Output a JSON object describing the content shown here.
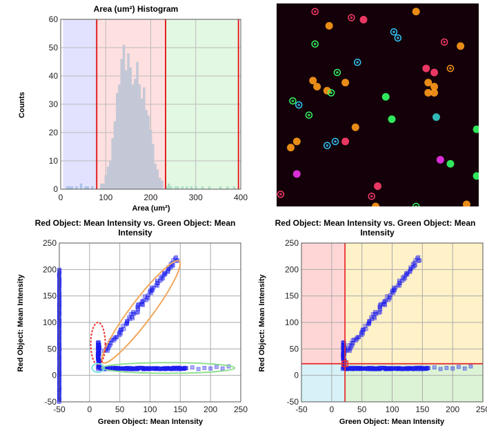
{
  "chart_data": [
    {
      "type": "bar",
      "title": "Area (um²) Histogram",
      "xlabel": "Area (um²)",
      "ylabel": "Counts",
      "xlim": [
        0,
        400
      ],
      "ylim": [
        0,
        60
      ],
      "xticks": [
        0,
        100,
        200,
        300,
        400
      ],
      "yticks": [
        0,
        10,
        20,
        30,
        40,
        50,
        60
      ],
      "grid": true,
      "gates": [
        {
          "range": [
            5,
            80
          ],
          "color": "#d8d8ff"
        },
        {
          "range": [
            80,
            233
          ],
          "color": "#ffd6d6"
        },
        {
          "range": [
            233,
            395
          ],
          "color": "#d8f5d8"
        }
      ],
      "bin_width": 5,
      "bins": [
        {
          "x": 15,
          "count": 1
        },
        {
          "x": 20,
          "count": 1
        },
        {
          "x": 25,
          "count": 1
        },
        {
          "x": 35,
          "count": 1
        },
        {
          "x": 45,
          "count": 2
        },
        {
          "x": 55,
          "count": 1
        },
        {
          "x": 60,
          "count": 1
        },
        {
          "x": 70,
          "count": 1
        },
        {
          "x": 90,
          "count": 2
        },
        {
          "x": 95,
          "count": 2
        },
        {
          "x": 100,
          "count": 5
        },
        {
          "x": 105,
          "count": 8
        },
        {
          "x": 110,
          "count": 10
        },
        {
          "x": 115,
          "count": 18
        },
        {
          "x": 120,
          "count": 24
        },
        {
          "x": 125,
          "count": 34
        },
        {
          "x": 130,
          "count": 37
        },
        {
          "x": 135,
          "count": 46
        },
        {
          "x": 140,
          "count": 51
        },
        {
          "x": 145,
          "count": 42
        },
        {
          "x": 150,
          "count": 48
        },
        {
          "x": 155,
          "count": 43
        },
        {
          "x": 160,
          "count": 37
        },
        {
          "x": 165,
          "count": 39
        },
        {
          "x": 170,
          "count": 45
        },
        {
          "x": 175,
          "count": 37
        },
        {
          "x": 180,
          "count": 32
        },
        {
          "x": 185,
          "count": 36
        },
        {
          "x": 190,
          "count": 28
        },
        {
          "x": 195,
          "count": 26
        },
        {
          "x": 200,
          "count": 21
        },
        {
          "x": 205,
          "count": 16
        },
        {
          "x": 210,
          "count": 9
        },
        {
          "x": 215,
          "count": 7
        },
        {
          "x": 220,
          "count": 4
        },
        {
          "x": 225,
          "count": 3
        },
        {
          "x": 235,
          "count": 1
        },
        {
          "x": 240,
          "count": 2
        },
        {
          "x": 245,
          "count": 1
        },
        {
          "x": 255,
          "count": 1
        },
        {
          "x": 260,
          "count": 1
        },
        {
          "x": 270,
          "count": 1
        },
        {
          "x": 280,
          "count": 1
        },
        {
          "x": 290,
          "count": 1
        },
        {
          "x": 300,
          "count": 1
        },
        {
          "x": 315,
          "count": 1
        },
        {
          "x": 330,
          "count": 1
        },
        {
          "x": 355,
          "count": 1
        },
        {
          "x": 370,
          "count": 1
        },
        {
          "x": 385,
          "count": 1
        }
      ]
    },
    {
      "type": "image",
      "title": "",
      "background": "#140008",
      "cells": [
        {
          "x": 0.19,
          "y": 0.04,
          "color": "#ff3d6e",
          "ring": true
        },
        {
          "x": 0.37,
          "y": 0.07,
          "color": "#ff3d6e",
          "ring": true
        },
        {
          "x": 0.43,
          "y": 0.08,
          "color": "#ff3d6e",
          "ring": false
        },
        {
          "x": 0.69,
          "y": 0.04,
          "color": "#ff9a1a",
          "ring": false
        },
        {
          "x": 0.26,
          "y": 0.11,
          "color": "#ff9a1a",
          "ring": false
        },
        {
          "x": 0.58,
          "y": 0.14,
          "color": "#33ccff",
          "ring": true
        },
        {
          "x": 0.6,
          "y": 0.17,
          "color": "#33ccff",
          "ring": true
        },
        {
          "x": 0.83,
          "y": 0.19,
          "color": "#ff3d6e",
          "ring": true
        },
        {
          "x": 0.91,
          "y": 0.21,
          "color": "#ff9a1a",
          "ring": false
        },
        {
          "x": 0.19,
          "y": 0.2,
          "color": "#33ff66",
          "ring": true
        },
        {
          "x": 0.4,
          "y": 0.29,
          "color": "#33ccff",
          "ring": true
        },
        {
          "x": 0.86,
          "y": 0.32,
          "color": "#ff9a1a",
          "ring": true
        },
        {
          "x": 0.74,
          "y": 0.32,
          "color": "#ff3d6e",
          "ring": false
        },
        {
          "x": 0.78,
          "y": 0.34,
          "color": "#ff3d6e",
          "ring": false
        },
        {
          "x": 0.3,
          "y": 0.34,
          "color": "#33ff66",
          "ring": true
        },
        {
          "x": 0.18,
          "y": 0.38,
          "color": "#ff9a1a",
          "ring": false
        },
        {
          "x": 0.2,
          "y": 0.41,
          "color": "#ff9a1a",
          "ring": false
        },
        {
          "x": 0.25,
          "y": 0.43,
          "color": "#ff9a1a",
          "ring": false
        },
        {
          "x": 0.27,
          "y": 0.44,
          "color": "#33ff66",
          "ring": true
        },
        {
          "x": 0.34,
          "y": 0.39,
          "color": "#ff9a1a",
          "ring": false
        },
        {
          "x": 0.75,
          "y": 0.39,
          "color": "#ff9a1a",
          "ring": false
        },
        {
          "x": 0.78,
          "y": 0.41,
          "color": "#ff9a1a",
          "ring": false
        },
        {
          "x": 0.75,
          "y": 0.44,
          "color": "#ff9a1a",
          "ring": false
        },
        {
          "x": 0.78,
          "y": 0.44,
          "color": "#ff9a1a",
          "ring": false
        },
        {
          "x": 0.08,
          "y": 0.48,
          "color": "#33ff66",
          "ring": true
        },
        {
          "x": 0.11,
          "y": 0.5,
          "color": "#33ccff",
          "ring": true
        },
        {
          "x": 0.16,
          "y": 0.55,
          "color": "#33ff66",
          "ring": true
        },
        {
          "x": 0.54,
          "y": 0.46,
          "color": "#33ff66",
          "ring": false
        },
        {
          "x": 0.57,
          "y": 0.57,
          "color": "#33ff66",
          "ring": false
        },
        {
          "x": 0.39,
          "y": 0.61,
          "color": "#ff9a1a",
          "ring": false
        },
        {
          "x": 0.79,
          "y": 0.56,
          "color": "#33cccc",
          "ring": false
        },
        {
          "x": 0.1,
          "y": 0.68,
          "color": "#ff9a1a",
          "ring": false
        },
        {
          "x": 0.07,
          "y": 0.71,
          "color": "#ff9a1a",
          "ring": false
        },
        {
          "x": 0.25,
          "y": 0.7,
          "color": "#33ccff",
          "ring": true
        },
        {
          "x": 0.29,
          "y": 0.68,
          "color": "#33ccff",
          "ring": true
        },
        {
          "x": 0.34,
          "y": 0.68,
          "color": "#ff3d6e",
          "ring": false
        },
        {
          "x": 0.99,
          "y": 0.62,
          "color": "#33ff66",
          "ring": false
        },
        {
          "x": 0.86,
          "y": 0.79,
          "color": "#33ff66",
          "ring": false
        },
        {
          "x": 0.1,
          "y": 0.84,
          "color": "#ee33ee",
          "ring": false
        },
        {
          "x": 0.81,
          "y": 0.77,
          "color": "#ee33ee",
          "ring": false
        },
        {
          "x": 0.99,
          "y": 0.85,
          "color": "#33ff66",
          "ring": false
        },
        {
          "x": 0.5,
          "y": 0.9,
          "color": "#ff3d6e",
          "ring": false
        },
        {
          "x": 0.47,
          "y": 0.95,
          "color": "#ff3d6e",
          "ring": true
        },
        {
          "x": 0.02,
          "y": 0.94,
          "color": "#ff3d6e",
          "ring": true
        },
        {
          "x": 0.49,
          "y": 1.0,
          "color": "#ff9a1a",
          "ring": false
        },
        {
          "x": 0.69,
          "y": 1.0,
          "color": "#33ff66",
          "ring": true
        },
        {
          "x": 0.94,
          "y": 0.99,
          "color": "#ff9a1a",
          "ring": false
        }
      ]
    },
    {
      "type": "scatter",
      "title": "Red Object: Mean Intensity vs. Green Object: Mean Intensity",
      "xlabel": "Green Object: Mean Intensity",
      "ylabel": "Red Object: Mean Intensity",
      "xlim": [
        -50,
        250
      ],
      "ylim": [
        -50,
        250
      ],
      "xticks": [
        -50,
        0,
        50,
        100,
        150,
        200,
        250
      ],
      "yticks": [
        -50,
        0,
        50,
        100,
        150,
        200,
        250
      ],
      "grid": true,
      "marker_color": "#1a1aee",
      "gates": [
        {
          "shape": "ellipse",
          "color": "#f2a65a",
          "cx": 85,
          "cy": 120,
          "rx": 18,
          "ry": 120,
          "angle": 37
        },
        {
          "shape": "ellipse",
          "color": "#8fe08f",
          "cx": 130,
          "cy": 14,
          "rx": 110,
          "ry": 10,
          "angle": 0
        },
        {
          "shape": "ellipse",
          "color": "#ee3333",
          "cx": 14,
          "cy": 60,
          "rx": 12,
          "ry": 40,
          "angle": 0,
          "dashed": true
        },
        {
          "shape": "ellipse",
          "color": "#7ee0e0",
          "cx": 14,
          "cy": 14,
          "rx": 10,
          "ry": 8,
          "angle": 0
        }
      ],
      "groups": [
        {
          "kind": "line",
          "x0": 25,
          "y0": 45,
          "x1": 145,
          "y1": 222,
          "n": 95,
          "spread": 3
        },
        {
          "kind": "line",
          "x0": 22,
          "y0": 13,
          "x1": 160,
          "y1": 13,
          "n": 140,
          "spread": 1.5
        },
        {
          "kind": "points",
          "x": [
            170,
            180,
            190,
            200,
            210,
            220,
            230
          ],
          "y": [
            15,
            12,
            14,
            13,
            16,
            13,
            17
          ]
        },
        {
          "kind": "line",
          "x0": 15,
          "y0": 15,
          "x1": 15,
          "y1": 62,
          "n": 60,
          "spread": 1.5
        },
        {
          "kind": "line",
          "x0": -50,
          "y0": -50,
          "x1": -50,
          "y1": 200,
          "n": 120,
          "spread": 0.4
        },
        {
          "kind": "points",
          "x": [
            14,
            16,
            18,
            20
          ],
          "y": [
            12,
            14,
            13,
            12
          ]
        }
      ]
    },
    {
      "type": "scatter",
      "title": "Red Object: Mean Intensity vs. Green Object: Mean Intensity",
      "xlabel": "Green Object: Mean Intensity",
      "ylabel": "Red Object: Mean Intensity",
      "xlim": [
        -50,
        250
      ],
      "ylim": [
        -50,
        250
      ],
      "xticks": [
        -50,
        0,
        50,
        100,
        150,
        200,
        250
      ],
      "yticks": [
        -50,
        0,
        50,
        100,
        150,
        200,
        250
      ],
      "grid": true,
      "marker_color": "#1a1aee",
      "quadrant_split": {
        "x": 22,
        "y": 22
      },
      "quadrant_colors": {
        "top_left": "#ffd6d6",
        "top_right": "#fff1c8",
        "bottom_left": "#d6f2f8",
        "bottom_right": "#dcf3d6"
      },
      "groups": [
        {
          "kind": "line",
          "x0": 25,
          "y0": 45,
          "x1": 145,
          "y1": 222,
          "n": 95,
          "spread": 3
        },
        {
          "kind": "line",
          "x0": 22,
          "y0": 13,
          "x1": 160,
          "y1": 13,
          "n": 140,
          "spread": 1.5
        },
        {
          "kind": "points",
          "x": [
            170,
            180,
            190,
            200,
            210,
            220,
            230
          ],
          "y": [
            15,
            12,
            14,
            13,
            16,
            13,
            17
          ]
        },
        {
          "kind": "line",
          "x0": 20,
          "y0": 15,
          "x1": 20,
          "y1": 62,
          "n": 60,
          "spread": 1.5
        },
        {
          "kind": "points",
          "x": [
            18,
            20,
            22,
            24
          ],
          "y": [
            12,
            14,
            13,
            12
          ]
        }
      ]
    }
  ]
}
